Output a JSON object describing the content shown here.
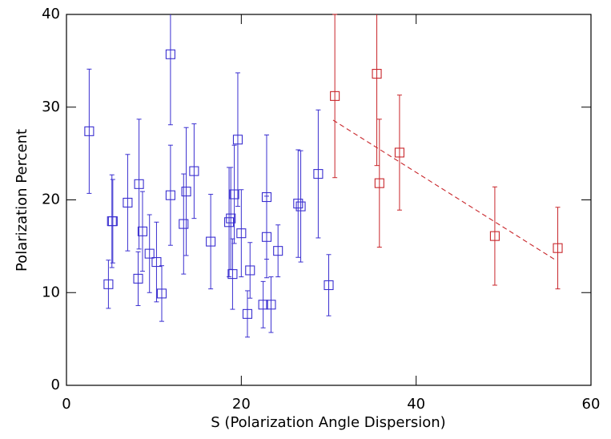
{
  "chart_data": {
    "type": "scatter",
    "xlabel": "S (Polarization Angle Dispersion)",
    "ylabel": "Polarization Percent",
    "xlim": [
      0,
      60
    ],
    "ylim": [
      0,
      40
    ],
    "xticks": [
      0,
      20,
      40,
      60
    ],
    "yticks": [
      0,
      10,
      20,
      30,
      40
    ],
    "series": [
      {
        "color": "#3a2fd0",
        "x": [
          2.6,
          4.8,
          5.2,
          5.3,
          7.0,
          8.2,
          8.3,
          8.7,
          9.5,
          10.3,
          10.9,
          11.9,
          11.9,
          13.4,
          13.7,
          14.6,
          16.5,
          18.6,
          18.8,
          19.0,
          19.2,
          19.6,
          20.0,
          20.7,
          21.0,
          22.5,
          22.9,
          22.9,
          23.4,
          24.2,
          26.5,
          26.8,
          28.8,
          30.0
        ],
        "values": [
          27.4,
          10.9,
          17.7,
          17.7,
          19.7,
          11.5,
          21.7,
          16.6,
          14.2,
          13.3,
          9.9,
          35.7,
          20.5,
          17.4,
          20.9,
          23.1,
          15.5,
          17.6,
          18.0,
          12.0,
          20.6,
          26.5,
          16.4,
          7.7,
          12.4,
          8.7,
          20.3,
          16.0,
          8.7,
          14.5,
          19.6,
          19.3,
          22.8,
          10.8
        ],
        "errors": [
          6.7,
          2.6,
          5.0,
          4.5,
          5.2,
          2.9,
          7.0,
          4.3,
          4.2,
          4.3,
          3.0,
          7.6,
          5.4,
          5.4,
          6.9,
          5.1,
          5.1,
          5.9,
          5.5,
          3.8,
          5.3,
          7.2,
          4.7,
          2.5,
          3.0,
          2.5,
          6.7,
          4.4,
          3.0,
          2.8,
          5.8,
          6.0,
          6.9,
          3.3
        ]
      },
      {
        "color": "#c8252a",
        "x": [
          30.7,
          35.5,
          35.8,
          38.1,
          49.0,
          56.2
        ],
        "values": [
          31.2,
          33.6,
          21.8,
          25.1,
          16.1,
          14.8
        ],
        "errors": [
          8.8,
          9.9,
          6.9,
          6.2,
          5.3,
          4.4
        ]
      }
    ],
    "fit": {
      "color": "#c8252a",
      "x": [
        30.5,
        55.8
      ],
      "values": [
        28.6,
        13.6
      ]
    }
  }
}
